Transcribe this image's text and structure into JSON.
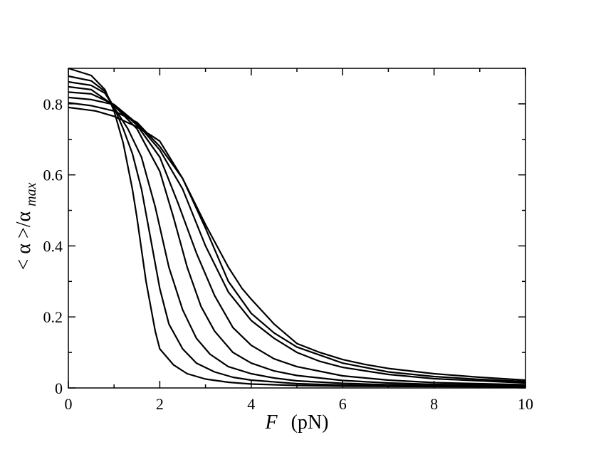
{
  "chart_data": {
    "type": "line",
    "xlabel_main": "F",
    "xlabel_unit": "(pN)",
    "ylabel_main": "< α >/α",
    "ylabel_sub": "max",
    "xlim": [
      0,
      10
    ],
    "ylim": [
      0,
      0.9
    ],
    "x_ticks": [
      0,
      2,
      4,
      6,
      8,
      10
    ],
    "x_tick_labels": [
      "0",
      "2",
      "4",
      "6",
      "8",
      "10"
    ],
    "y_ticks": [
      0,
      0.2,
      0.4,
      0.6,
      0.8
    ],
    "y_tick_labels": [
      "0",
      "0.2",
      "0.4",
      "0.6",
      "0.8"
    ],
    "x_minor_step": 1,
    "y_minor_step": 0.1,
    "grid": false,
    "legend": "none",
    "line_color": "#000000",
    "series": [
      {
        "x": [
          0,
          0.5,
          0.8,
          1.0,
          1.2,
          1.4,
          1.5,
          1.7,
          1.9,
          2.0,
          2.3,
          2.6,
          3.0,
          3.5,
          4.0,
          5.0,
          6.0,
          8.0,
          10.0
        ],
        "y": [
          0.9,
          0.88,
          0.84,
          0.78,
          0.69,
          0.56,
          0.48,
          0.3,
          0.16,
          0.11,
          0.065,
          0.04,
          0.025,
          0.016,
          0.011,
          0.007,
          0.005,
          0.004,
          0.003
        ]
      },
      {
        "x": [
          0,
          0.5,
          0.8,
          1.0,
          1.2,
          1.4,
          1.6,
          1.8,
          2.0,
          2.2,
          2.5,
          2.8,
          3.2,
          3.6,
          4.0,
          5.0,
          6.0,
          8.0,
          10.0
        ],
        "y": [
          0.878,
          0.865,
          0.835,
          0.79,
          0.73,
          0.66,
          0.56,
          0.42,
          0.28,
          0.18,
          0.11,
          0.07,
          0.045,
          0.03,
          0.022,
          0.012,
          0.008,
          0.005,
          0.004
        ]
      },
      {
        "x": [
          0,
          0.5,
          0.8,
          1.0,
          1.3,
          1.6,
          1.9,
          2.2,
          2.5,
          2.8,
          3.1,
          3.5,
          4.0,
          4.5,
          5.0,
          6.0,
          7.0,
          8.0,
          10.0
        ],
        "y": [
          0.862,
          0.852,
          0.83,
          0.79,
          0.73,
          0.65,
          0.51,
          0.34,
          0.22,
          0.14,
          0.095,
          0.06,
          0.04,
          0.028,
          0.02,
          0.013,
          0.009,
          0.007,
          0.005
        ]
      },
      {
        "x": [
          0,
          0.5,
          1.0,
          1.5,
          2.0,
          2.3,
          2.6,
          2.9,
          3.2,
          3.6,
          4.0,
          4.5,
          5.0,
          6.0,
          7.0,
          8.0,
          10.0
        ],
        "y": [
          0.848,
          0.84,
          0.795,
          0.73,
          0.61,
          0.48,
          0.34,
          0.23,
          0.16,
          0.1,
          0.07,
          0.048,
          0.035,
          0.021,
          0.014,
          0.01,
          0.007
        ]
      },
      {
        "x": [
          0,
          0.5,
          1.0,
          1.5,
          2.0,
          2.4,
          2.8,
          3.2,
          3.6,
          4.0,
          4.5,
          5.0,
          6.0,
          7.0,
          8.0,
          10.0
        ],
        "y": [
          0.833,
          0.828,
          0.798,
          0.74,
          0.65,
          0.52,
          0.38,
          0.26,
          0.17,
          0.12,
          0.082,
          0.06,
          0.034,
          0.022,
          0.015,
          0.009
        ]
      },
      {
        "x": [
          0,
          0.5,
          1.0,
          1.5,
          2.0,
          2.5,
          3.0,
          3.5,
          4.0,
          4.5,
          5.0,
          5.5,
          6.0,
          7.0,
          8.0,
          10.0
        ],
        "y": [
          0.818,
          0.812,
          0.798,
          0.745,
          0.67,
          0.56,
          0.4,
          0.27,
          0.19,
          0.14,
          0.1,
          0.075,
          0.058,
          0.038,
          0.026,
          0.014
        ]
      },
      {
        "x": [
          0,
          0.5,
          1.0,
          1.5,
          2.0,
          2.5,
          3.0,
          3.5,
          4.0,
          4.5,
          5.0,
          6.0,
          7.0,
          8.0,
          9.0,
          10.0
        ],
        "y": [
          0.803,
          0.795,
          0.78,
          0.748,
          0.68,
          0.59,
          0.45,
          0.3,
          0.21,
          0.155,
          0.115,
          0.07,
          0.045,
          0.032,
          0.024,
          0.018
        ]
      },
      {
        "x": [
          0,
          0.6,
          1.0,
          1.5,
          1.8,
          2.0,
          2.5,
          3.0,
          3.5,
          3.8,
          4.0,
          4.5,
          5.0,
          5.5,
          6.0,
          6.5,
          7.0,
          8.0,
          9.0,
          10.0
        ],
        "y": [
          0.79,
          0.78,
          0.765,
          0.735,
          0.712,
          0.695,
          0.59,
          0.46,
          0.34,
          0.28,
          0.25,
          0.18,
          0.125,
          0.1,
          0.08,
          0.066,
          0.055,
          0.04,
          0.03,
          0.022
        ]
      }
    ]
  }
}
